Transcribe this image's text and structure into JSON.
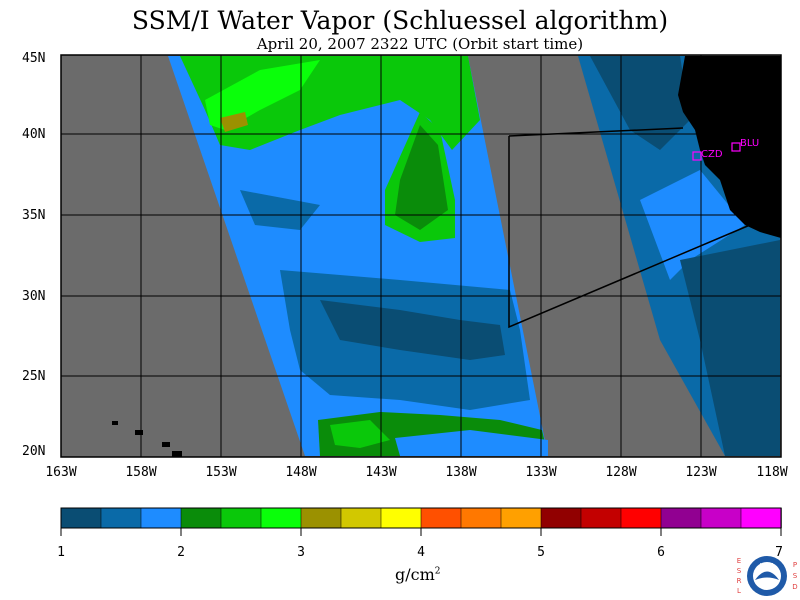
{
  "title": "SSM/I Water Vapor (Schluessel algorithm)",
  "subtitle": "April 20, 2007  2322 UTC  (Orbit start time)",
  "map": {
    "lat_labels": [
      "45N",
      "40N",
      "35N",
      "30N",
      "25N",
      "20N"
    ],
    "lon_labels": [
      "163W",
      "158W",
      "153W",
      "148W",
      "143W",
      "138W",
      "133W",
      "128W",
      "123W",
      "118W"
    ],
    "stations": [
      {
        "id": "CZD",
        "label": "CZD"
      },
      {
        "id": "BLU",
        "label": "BLU"
      }
    ],
    "colors": {
      "no_data": "#6b6b6b",
      "land": "#000000",
      "grid": "#000000",
      "station": "#ff00ff"
    }
  },
  "colorbar": {
    "colors": [
      "#0a4d73",
      "#0a6aa8",
      "#1e8cff",
      "#0a8c0a",
      "#0ac80a",
      "#0aff0a",
      "#9b9100",
      "#d2c800",
      "#ffff00",
      "#ff5000",
      "#ff7800",
      "#ffa000",
      "#910000",
      "#c30000",
      "#ff0000",
      "#910091",
      "#c800c8",
      "#ff00ff"
    ],
    "ticks": [
      "1",
      "2",
      "3",
      "4",
      "5",
      "6",
      "7"
    ],
    "unit_base": "g/cm",
    "unit_exp": "2"
  },
  "logo": {
    "left_letters": "ESRL",
    "right_letters": "PSD",
    "emblem": "NOAA"
  }
}
